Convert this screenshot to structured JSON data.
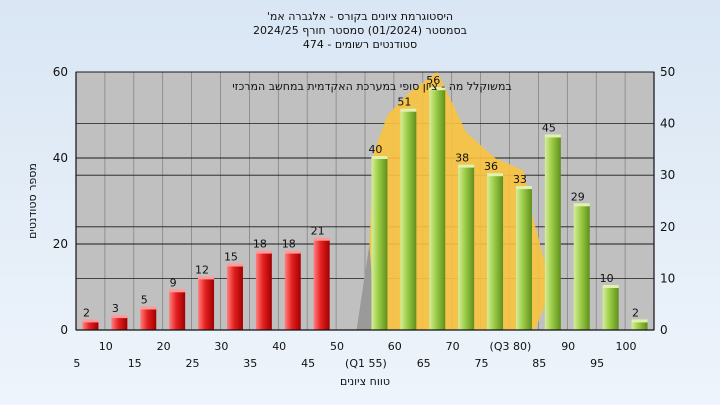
{
  "title": {
    "line1": "'היסטוגרמת ציונים בקורס - אלגברה אמ",
    "line2": "בסמסטר  (01/2024)  סמסטר חורף 2024/25",
    "line3": "474 - סטודנטים רשומים"
  },
  "chart_data": {
    "type": "bar",
    "title": "'היסטוגרמת ציונים בקורס - אלגברה אמ",
    "xlabel": "טווח ציונים",
    "ylabel": "מספר סטודנטים",
    "ylim": [
      0,
      60
    ],
    "y2lim": [
      0,
      50
    ],
    "y_ticks": [
      0,
      20,
      40,
      60
    ],
    "y2_ticks": [
      0,
      10,
      20,
      30,
      40,
      50
    ],
    "categories": [
      "5",
      "10",
      "15",
      "20",
      "25",
      "30",
      "35",
      "40",
      "45",
      "50",
      "(Q1 55)",
      "60",
      "65",
      "70",
      "75",
      "(Q3 80)",
      "85",
      "90",
      "95",
      "100"
    ],
    "values": [
      2,
      3,
      5,
      9,
      12,
      15,
      18,
      18,
      21,
      null,
      40,
      51,
      56,
      38,
      36,
      33,
      45,
      29,
      10,
      2
    ],
    "data_labels": [
      "2",
      "3",
      "5",
      "9",
      "12",
      "15",
      "18",
      "18",
      "21",
      "",
      "40",
      "51",
      "56",
      "38",
      "36",
      "33",
      "45",
      "29",
      "10",
      "2"
    ],
    "bar_colors": [
      "red",
      "red",
      "red",
      "red",
      "red",
      "red",
      "red",
      "red",
      "red",
      "",
      "green",
      "green",
      "green",
      "green",
      "green",
      "green",
      "green",
      "green",
      "green",
      "green"
    ],
    "annotation": "במשוקלל מה - ציון סופי במערכת האקדמית במחשב המרכזי",
    "grid": true,
    "colors": {
      "red_light": "#ff7a7a",
      "red_dark": "#b40000",
      "green_light": "#c9e58a",
      "green_dark": "#5f8f1c",
      "shade": "#f9c33f",
      "plot_bg": "#c0c0c0"
    }
  }
}
